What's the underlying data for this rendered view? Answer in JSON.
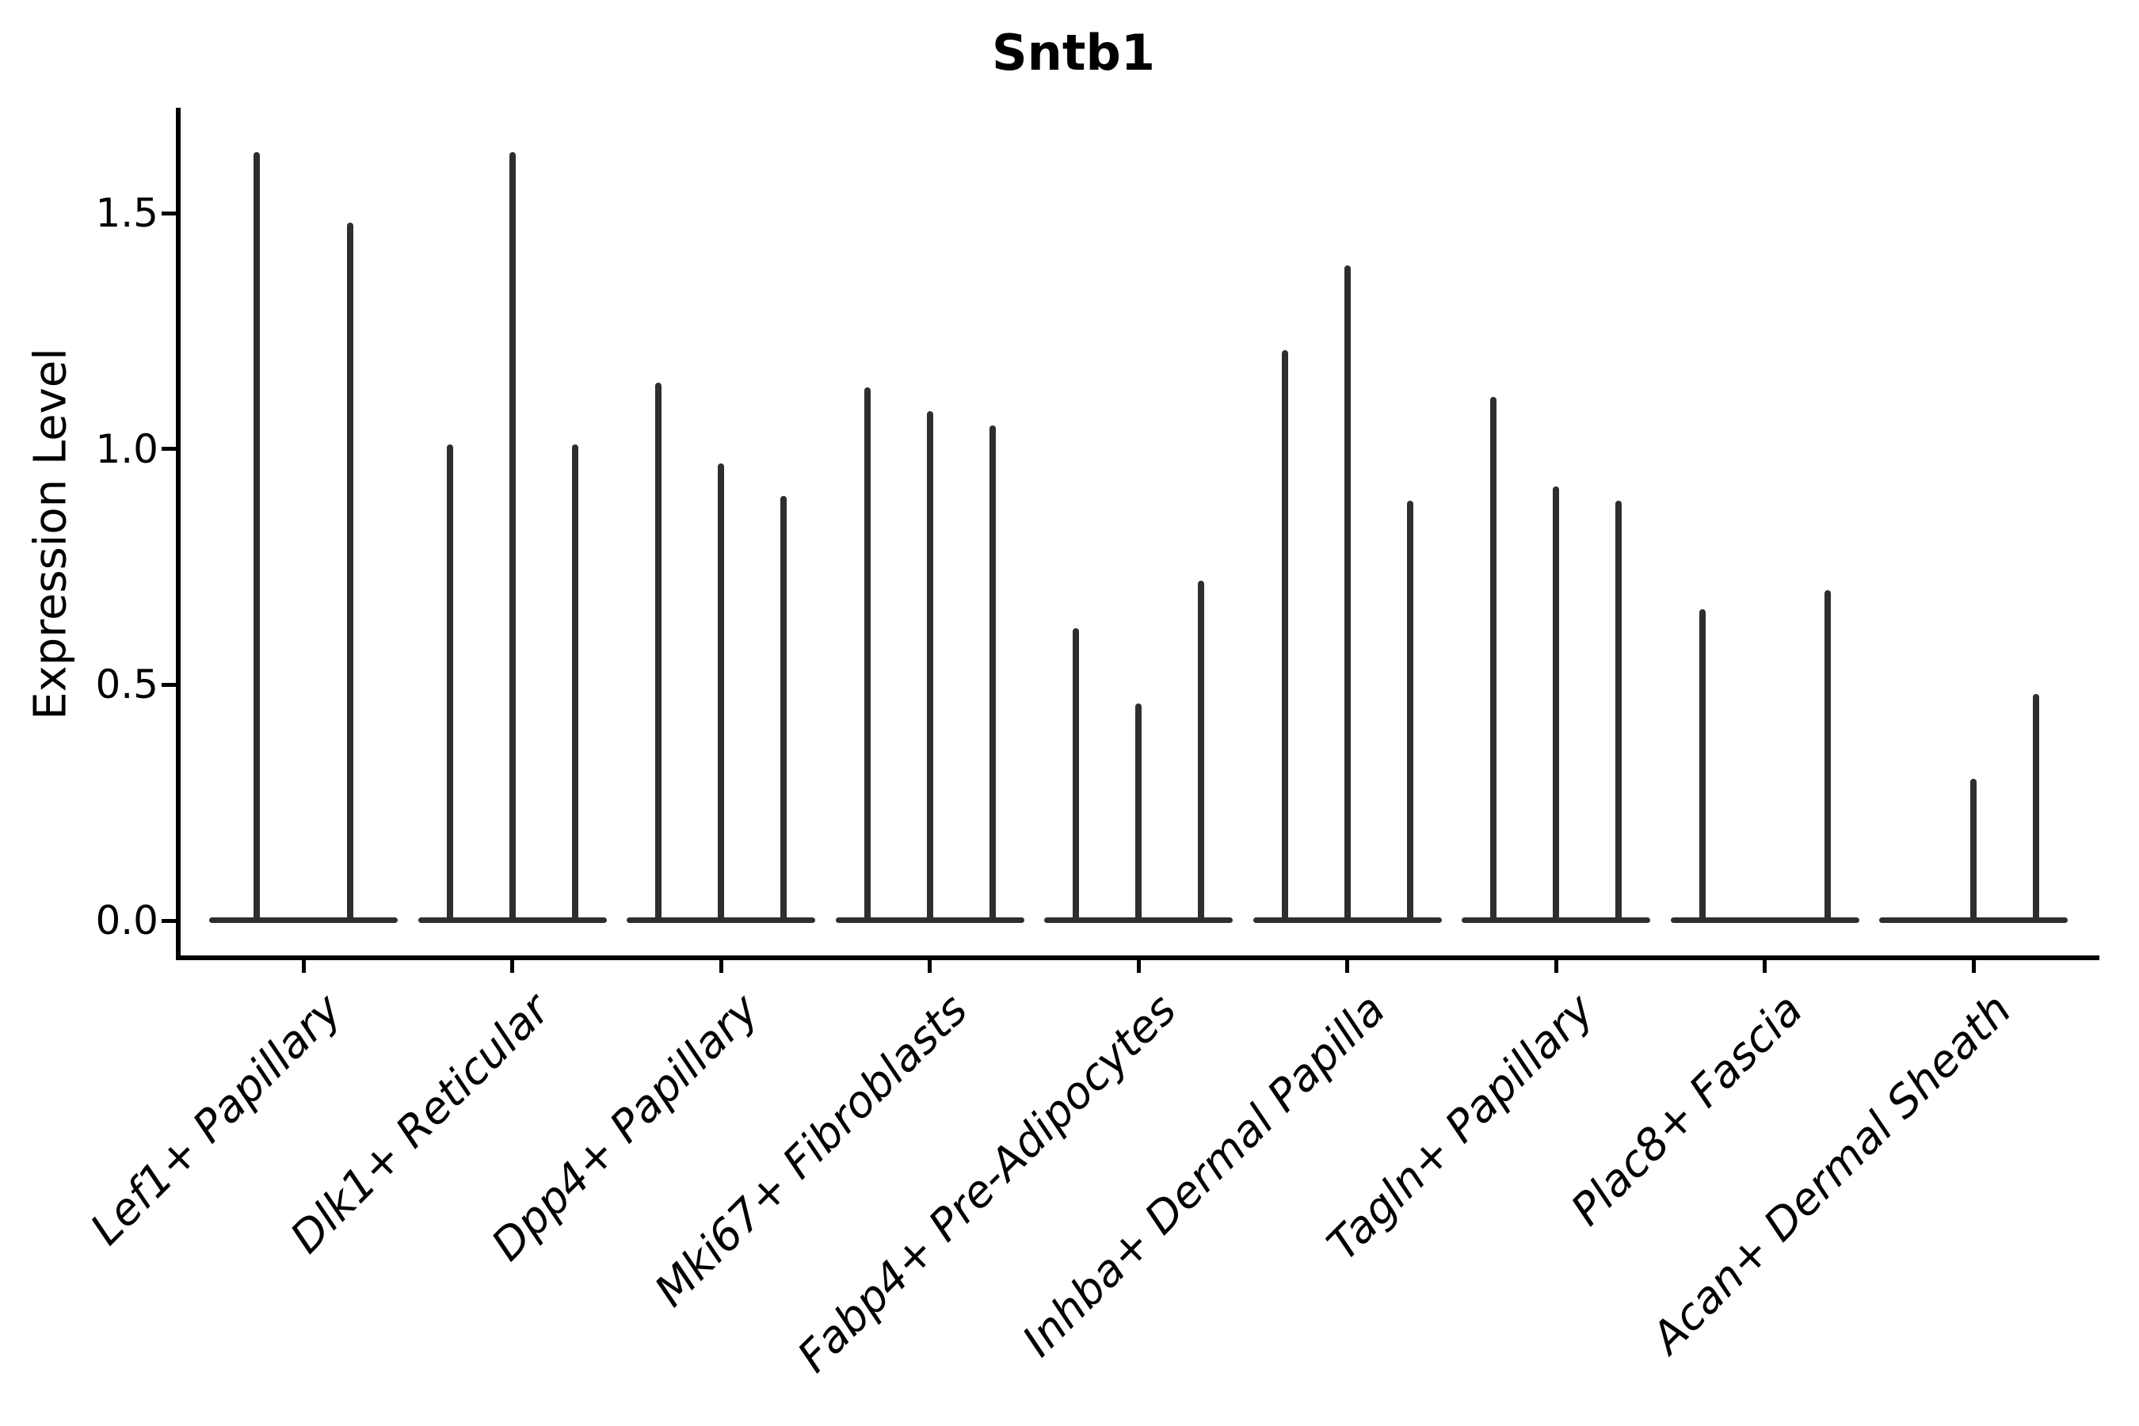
{
  "chart_data": {
    "type": "violin",
    "title": "Sntb1",
    "ylabel": "Expression Level",
    "xlabel": "",
    "background_color": "#ffffff",
    "violin_color": "#2e2e2e",
    "axis_color": "#000000",
    "ylim": [
      0,
      1.72
    ],
    "grid": false,
    "legend": "none",
    "yticks": [
      {
        "value": 0.0,
        "label": "0.0"
      },
      {
        "value": 0.5,
        "label": "0.5"
      },
      {
        "value": 1.0,
        "label": "1.0"
      },
      {
        "value": 1.5,
        "label": "1.5"
      }
    ],
    "categories": [
      {
        "label": "Lef1+ Papillary",
        "peaks": [
          1.63,
          1.48
        ]
      },
      {
        "label": "Dlk1+ Reticular",
        "peaks": [
          1.01,
          1.63,
          1.01
        ]
      },
      {
        "label": "Dpp4+ Papillary",
        "peaks": [
          1.14,
          0.97,
          0.9
        ]
      },
      {
        "label": "Mki67+ Fibroblasts",
        "peaks": [
          1.13,
          1.08,
          1.05
        ]
      },
      {
        "label": "Fabp4+ Pre-Adipocytes",
        "peaks": [
          0.62,
          0.46,
          0.72
        ]
      },
      {
        "label": "Inhba+ Dermal Papilla",
        "peaks": [
          1.21,
          1.39,
          0.89
        ]
      },
      {
        "label": "Tagln+ Papillary",
        "peaks": [
          1.11,
          0.92,
          0.89
        ]
      },
      {
        "label": "Plac8+ Fascia",
        "peaks": [
          0.66,
          0.0,
          0.7
        ]
      },
      {
        "label": "Acan+ Dermal Sheath",
        "peaks": [
          0.0,
          0.3,
          0.48
        ]
      }
    ],
    "note": "Each category shows narrow violins; a peak of 0.0 means the violin is flat at the baseline."
  }
}
